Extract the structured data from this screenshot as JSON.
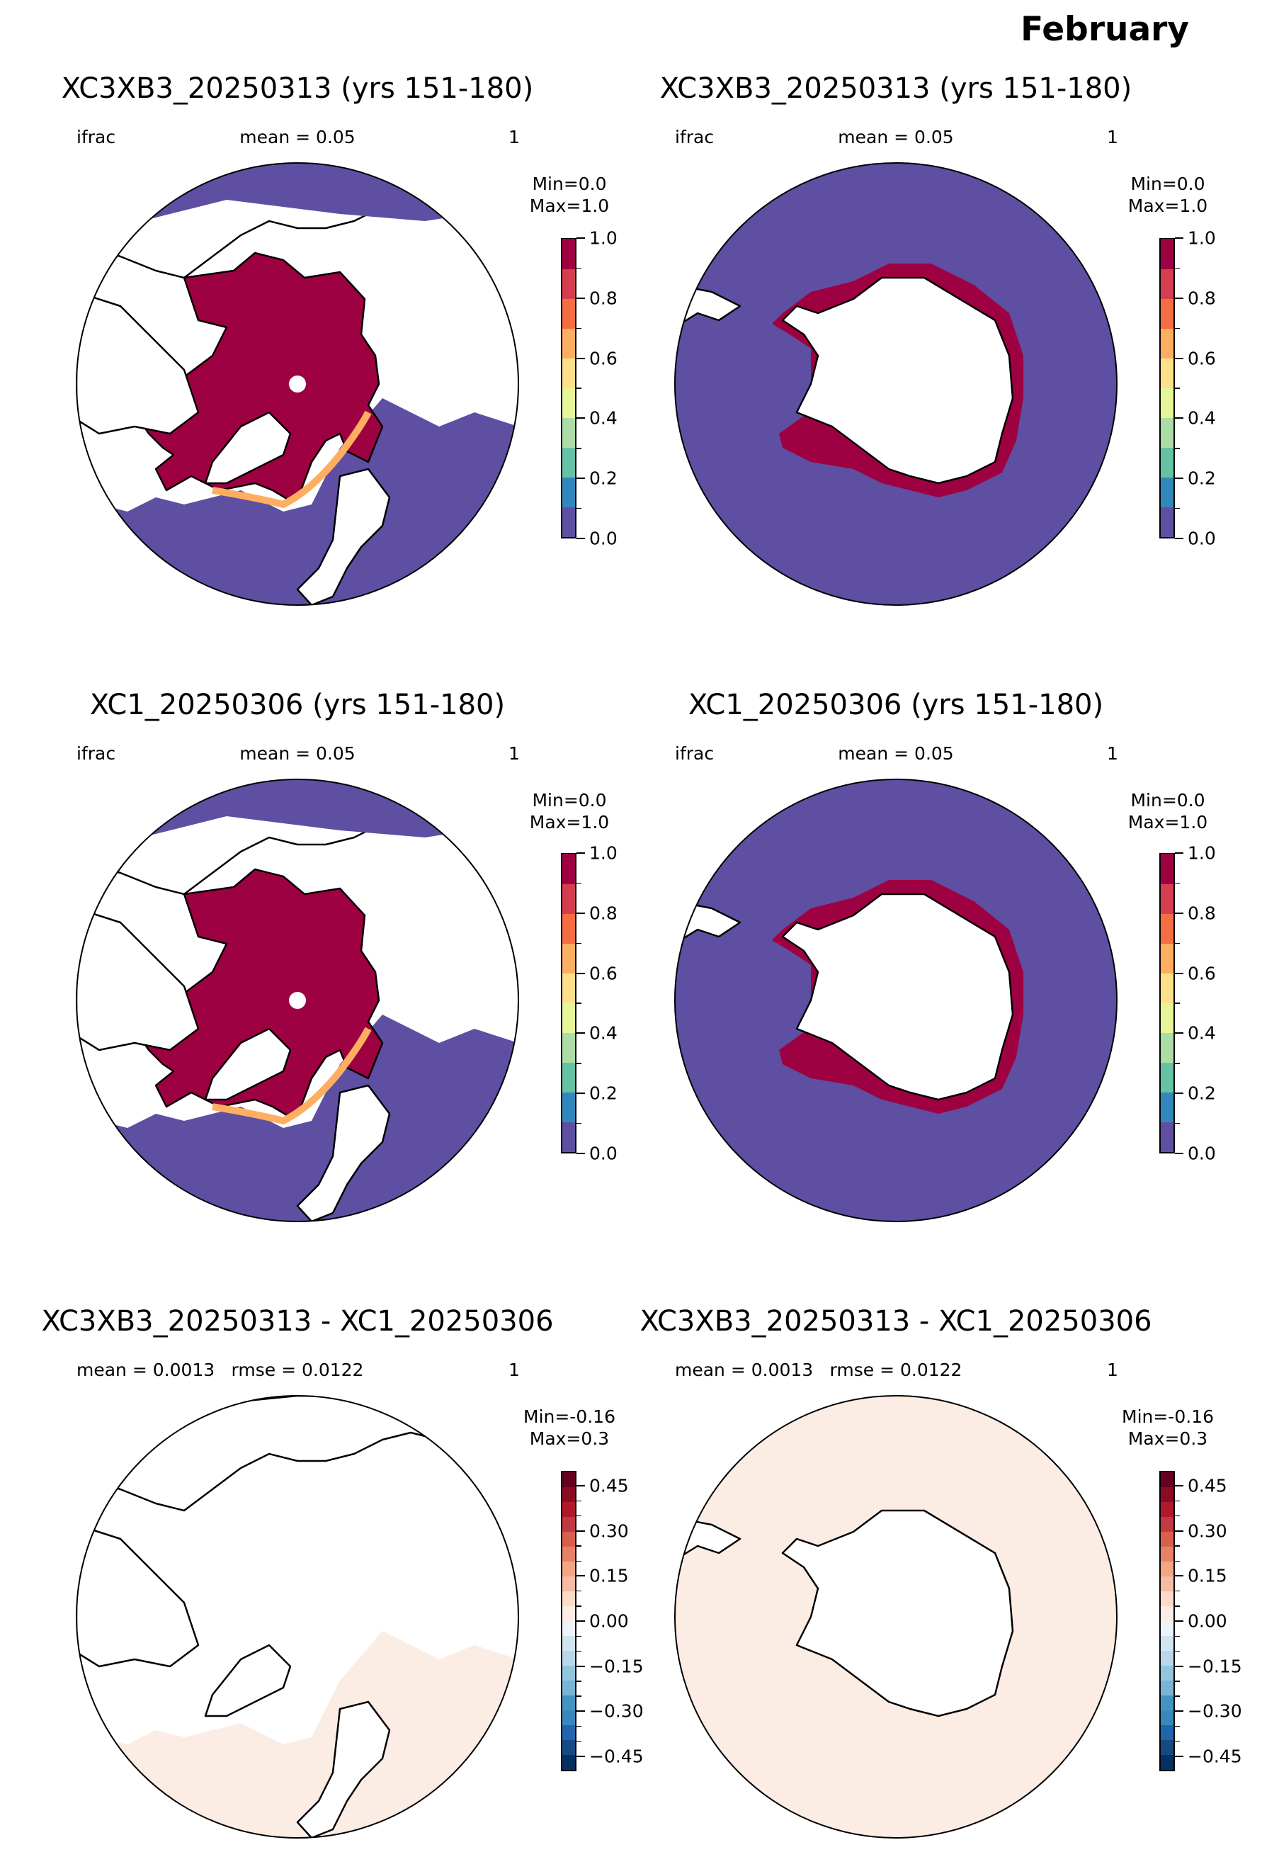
{
  "figure_title": "February",
  "panels": [
    {
      "title": "XC3XB3_20250313 (yrs 151-180)",
      "sub_left": "ifrac",
      "sub_mid": "mean = 0.05",
      "sub_right": "1",
      "min": "Min=0.0",
      "max": "Max=1.0",
      "hemisphere": "north",
      "field": "ifrac"
    },
    {
      "title": "XC3XB3_20250313 (yrs 151-180)",
      "sub_left": "ifrac",
      "sub_mid": "mean = 0.05",
      "sub_right": "1",
      "min": "Min=0.0",
      "max": "Max=1.0",
      "hemisphere": "south",
      "field": "ifrac"
    },
    {
      "title": "XC1_20250306 (yrs 151-180)",
      "sub_left": "ifrac",
      "sub_mid": "mean = 0.05",
      "sub_right": "1",
      "min": "Min=0.0",
      "max": "Max=1.0",
      "hemisphere": "north",
      "field": "ifrac"
    },
    {
      "title": "XC1_20250306 (yrs 151-180)",
      "sub_left": "ifrac",
      "sub_mid": "mean = 0.05",
      "sub_right": "1",
      "min": "Min=0.0",
      "max": "Max=1.0",
      "hemisphere": "south",
      "field": "ifrac"
    },
    {
      "title": "XC3XB3_20250313 - XC1_20250306",
      "sub_left": "mean = 0.0013",
      "sub_mid": "rmse = 0.0122",
      "sub_right": "1",
      "min": "Min=-0.16",
      "max": "Max=0.3",
      "hemisphere": "north",
      "field": "diff"
    },
    {
      "title": "XC3XB3_20250313 - XC1_20250306",
      "sub_left": "mean = 0.0013",
      "sub_mid": "rmse = 0.0122",
      "sub_right": "1",
      "min": "Min=-0.16",
      "max": "Max=0.3",
      "hemisphere": "south",
      "field": "diff"
    }
  ],
  "colorbars": {
    "ifrac": {
      "range": [
        0.0,
        1.0
      ],
      "labels": [
        "1.0",
        "0.8",
        "0.6",
        "0.4",
        "0.2",
        "0.0"
      ],
      "colors": [
        "#5e4fa2",
        "#3288bd",
        "#66c2a5",
        "#abdda4",
        "#e6f598",
        "#fee08b",
        "#fdae61",
        "#f46d43",
        "#d53e4f",
        "#9e0142"
      ]
    },
    "diff": {
      "range": [
        -0.5,
        0.5
      ],
      "labels": [
        "0.45",
        "0.30",
        "0.15",
        "0.00",
        "−0.15",
        "−0.30",
        "−0.45"
      ],
      "colors": [
        "#053061",
        "#154a85",
        "#2166ac",
        "#3a87bd",
        "#4393c3",
        "#79b3d5",
        "#92c5de",
        "#b9d7e8",
        "#d1e5f0",
        "#eef3f7",
        "#fbece4",
        "#fddbc7",
        "#f7bca4",
        "#f4a582",
        "#e58267",
        "#d6604d",
        "#c13a3f",
        "#b2182b",
        "#8b0b23",
        "#67001f"
      ]
    }
  },
  "map_colors": {
    "ocean_low": "#5e4fa2",
    "ice_high": "#9e0142",
    "land": "#ffffff",
    "diff_background": "#fbece4",
    "coast": "#000000"
  }
}
